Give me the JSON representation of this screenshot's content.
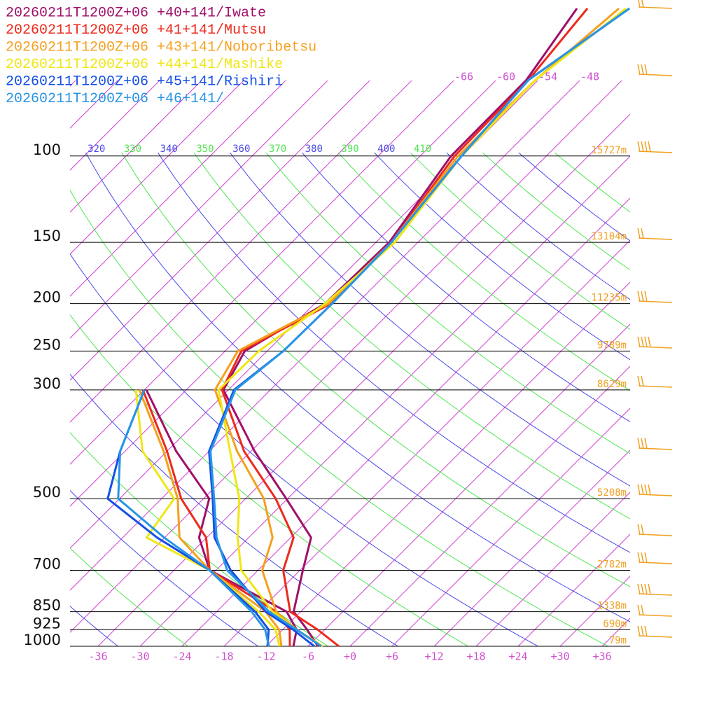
{
  "chart_data": {
    "type": "skewt",
    "pressure": [
      1000,
      925,
      850,
      700,
      600,
      500,
      400,
      300,
      250,
      200,
      150,
      100,
      70,
      50
    ],
    "series": [
      {
        "name": "20260211T1200Z+06 +40+141/Iwate",
        "color": "#a0106a",
        "values": [
          -4.6,
          -8.5,
          -13.0,
          -17.6,
          -21.1,
          -30.2,
          -41.5,
          -54.7,
          -57.2,
          -52.5,
          -52.1,
          -55.6,
          -55.7,
          -58.7
        ],
        "dewpoint": [
          -8.1,
          -10.0,
          -14.0,
          -30.9,
          -37.1,
          -41.2,
          -52.7,
          -65.7,
          null,
          null,
          null,
          null,
          null,
          null
        ]
      },
      {
        "name": "20260211T1200Z+06 +41+141/Mutsu",
        "color": "#ec2a1c",
        "values": [
          -1.6,
          -7.0,
          -13.5,
          -20.4,
          -23.6,
          -31.7,
          -43.0,
          -54.9,
          -57.7,
          -51.7,
          -51.8,
          -55.1,
          -55.4,
          -57.2
        ],
        "dewpoint": [
          -8.6,
          -11.0,
          -15.5,
          -30.9,
          -36.1,
          -45.2,
          -54.0,
          -66.2,
          null,
          null,
          null,
          null,
          null,
          null
        ]
      },
      {
        "name": "20260211T1200Z+06 +43+141/Noboribetsu",
        "color": "#f5a01e",
        "values": [
          -4.1,
          -10.0,
          -15.5,
          -23.4,
          -26.6,
          -33.4,
          -44.0,
          -55.9,
          -58.2,
          -52.0,
          -51.8,
          -54.6,
          -54.4,
          -52.7
        ],
        "dewpoint": [
          -9.8,
          -12.5,
          -17.0,
          -30.9,
          -39.9,
          -45.7,
          -54.5,
          -66.7,
          null,
          null,
          null,
          null,
          null,
          null
        ]
      },
      {
        "name": "20260211T1200Z+06 +44+141/Mashike",
        "color": "#f0e614",
        "values": [
          -3.9,
          -10.0,
          -16.0,
          -26.4,
          -31.6,
          -36.9,
          -45.0,
          -55.4,
          -55.2,
          -52.5,
          -51.3,
          -54.1,
          -54.4,
          -51.7
        ],
        "dewpoint": [
          -10.1,
          -13.0,
          -18.0,
          -30.9,
          -44.6,
          -46.2,
          -57.5,
          -67.2,
          null,
          null,
          null,
          null,
          null,
          null
        ]
      },
      {
        "name": "20260211T1200Z+06 +45+141/Rishiri",
        "color": "#1450e6",
        "values": [
          -5.1,
          -10.5,
          -17.0,
          -27.9,
          -34.9,
          -40.7,
          -48.0,
          -53.2,
          -51.7,
          -51.5,
          -51.8,
          -54.1,
          -55.4,
          -51.2
        ],
        "dewpoint": [
          -11.8,
          -14.0,
          -18.5,
          -30.9,
          -43.1,
          -55.7,
          -60.7,
          -66.0,
          null,
          null,
          null,
          null,
          null,
          null
        ]
      },
      {
        "name": "20260211T1200Z+06 +46+141/",
        "color": "#2896e6",
        "values": [
          -4.1,
          -10.0,
          -16.5,
          -28.4,
          -34.6,
          -40.5,
          -47.8,
          -53.0,
          -51.7,
          -51.5,
          -51.8,
          -54.1,
          -55.4,
          -51.2
        ],
        "dewpoint": [
          -11.6,
          -14.5,
          -19.0,
          -30.9,
          -42.1,
          -54.2,
          -60.7,
          -66.0,
          null,
          null,
          null,
          null,
          null,
          null
        ]
      }
    ],
    "xlim": [
      -40,
      40
    ],
    "xticks": [
      -36,
      -30,
      -24,
      -18,
      -12,
      -6,
      {
        "value": 0,
        "label": "+0"
      },
      {
        "value": 6,
        "label": "+6"
      },
      {
        "value": 12,
        "label": "+12"
      },
      {
        "value": 18,
        "label": "+18"
      },
      {
        "value": 24,
        "label": "+24"
      },
      {
        "value": 30,
        "label": "+30"
      },
      {
        "value": 36,
        "label": "+36"
      }
    ],
    "ylim": [
      1000,
      50
    ],
    "log_y": true,
    "yticks": [
      1000,
      925,
      850,
      700,
      500,
      300,
      250,
      200,
      150,
      100
    ],
    "isotherm_labels": [
      -66,
      -60,
      -54,
      -48
    ],
    "theta_labels": [
      320,
      330,
      340,
      350,
      360,
      370,
      380,
      390,
      400,
      410
    ],
    "heights": [
      {
        "pressure": 100,
        "label": "15727m"
      },
      {
        "pressure": 150,
        "label": "13104m"
      },
      {
        "pressure": 200,
        "label": "11235m"
      },
      {
        "pressure": 250,
        "label": "9789m"
      },
      {
        "pressure": 300,
        "label": "8629m"
      },
      {
        "pressure": 500,
        "label": "5208m"
      },
      {
        "pressure": 700,
        "label": "2782m"
      },
      {
        "pressure": 850,
        "label": "1338m"
      },
      {
        "pressure": 925,
        "label": "690m"
      },
      {
        "pressure": 1000,
        "label": "79m"
      }
    ]
  }
}
